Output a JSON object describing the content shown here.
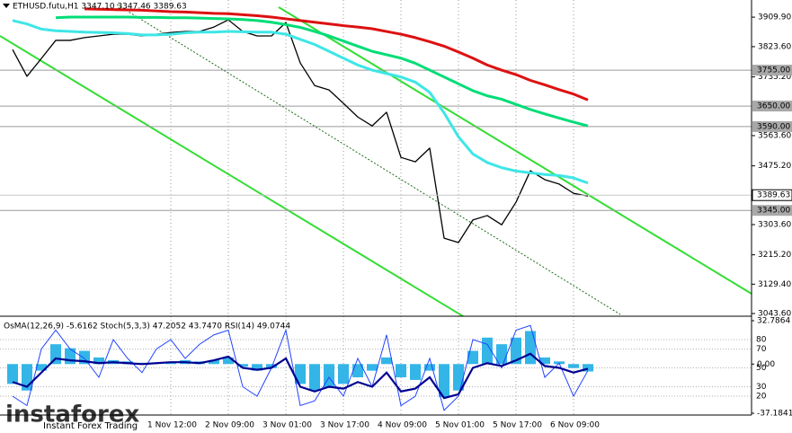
{
  "chart_data": [
    {
      "type": "line",
      "title": "ETHUSD.futu,H1 3347.10 3347.46 3389.63",
      "categories": [
        null,
        null,
        null,
        null,
        null,
        null,
        null,
        null,
        null,
        null,
        null,
        "1 Nov 12:00",
        null,
        null,
        null,
        "2 Nov 09:00",
        null,
        null,
        null,
        "3 Nov 01:00",
        null,
        null,
        null,
        "3 Nov 17:00",
        null,
        null,
        null,
        "4 Nov 09:00",
        null,
        null,
        null,
        "5 Nov 01:00",
        null,
        null,
        null,
        "5 Nov 17:00",
        null,
        null,
        null,
        "6 Nov 09:00",
        null
      ],
      "series": [
        {
          "name": "close",
          "color": "#000000",
          "width": 1.3,
          "values": [
            3815,
            3737,
            3789,
            3842,
            3842,
            3850,
            3855,
            3860,
            3860,
            3855,
            3860,
            3865,
            3868,
            3868,
            3881,
            3902,
            3868,
            3855,
            3855,
            3894,
            3776,
            3710,
            3697,
            3658,
            3618,
            3592,
            3632,
            3500,
            3487,
            3527,
            3264,
            3251,
            3317,
            3330,
            3303,
            3369,
            3461,
            3435,
            3422,
            3395,
            3387
          ]
        },
        {
          "name": "ma-fast",
          "color": "#3ee6e6",
          "width": 3,
          "values": [
            3900,
            3890,
            3875,
            3870,
            3868,
            3866,
            3865,
            3864,
            3862,
            3858,
            3858,
            3860,
            3864,
            3866,
            3866,
            3868,
            3867,
            3866,
            3866,
            3860,
            3845,
            3830,
            3810,
            3790,
            3770,
            3755,
            3745,
            3735,
            3720,
            3690,
            3630,
            3560,
            3510,
            3485,
            3470,
            3460,
            3455,
            3450,
            3447,
            3440,
            3425
          ]
        },
        {
          "name": "ma-mid",
          "color": "#00dd77",
          "width": 3,
          "values": [
            null,
            null,
            null,
            3908,
            3910,
            3910,
            3910,
            3910,
            3910,
            3909,
            3909,
            3908,
            3908,
            3907,
            3906,
            3905,
            3903,
            3900,
            3895,
            3888,
            3880,
            3868,
            3855,
            3840,
            3825,
            3810,
            3800,
            3790,
            3775,
            3755,
            3735,
            3715,
            3695,
            3680,
            3670,
            3655,
            3640,
            3627,
            3615,
            3603,
            3592
          ]
        },
        {
          "name": "ma-slow",
          "color": "#dd1111",
          "width": 3,
          "values": [
            null,
            null,
            null,
            null,
            null,
            3934,
            3933,
            3932,
            3931,
            3930,
            3928,
            3926,
            3925,
            3923,
            3921,
            3920,
            3917,
            3914,
            3910,
            3905,
            3900,
            3895,
            3890,
            3885,
            3881,
            3876,
            3868,
            3860,
            3850,
            3838,
            3825,
            3808,
            3790,
            3770,
            3755,
            3742,
            3725,
            3712,
            3698,
            3685,
            3668
          ]
        }
      ],
      "ylim": [
        3041,
        3960
      ],
      "yticks": [
        {
          "value": 3909.9,
          "label": "3909.90"
        },
        {
          "value": 3823.6,
          "label": "3823.60"
        },
        {
          "value": 3735.2,
          "label": "3735.20"
        },
        {
          "value": 3563.6,
          "label": "3563.60"
        },
        {
          "value": 3475.2,
          "label": "3475.20"
        },
        {
          "value": 3303.6,
          "label": "3303.60"
        },
        {
          "value": 3215.2,
          "label": "3215.20"
        },
        {
          "value": 3129.4,
          "label": "3129.40"
        },
        {
          "value": 3043.6,
          "label": "3043.60"
        }
      ],
      "levels": [
        {
          "value": 3755,
          "label": "3755.00"
        },
        {
          "value": 3650,
          "label": "3650.00"
        },
        {
          "value": 3590,
          "label": "3590.00"
        },
        {
          "value": 3345,
          "label": "3345.00"
        }
      ],
      "price": 3389.63,
      "grid": true
    },
    {
      "type": "oscillator",
      "title": "OsMA(12,26,9) -5.6162 Stoch(5,3,3) 47.2052 43.7470 RSI(14) 49.0744",
      "series": [
        {
          "name": "OsMA",
          "type": "bar",
          "axis": "y2",
          "color": "#33b5e8",
          "values": [
            -15,
            -20,
            -5,
            15,
            12,
            10,
            5,
            3,
            2,
            1,
            0,
            1,
            3,
            2,
            3,
            5,
            -2,
            -5,
            -3,
            0,
            -15,
            -20,
            -18,
            -15,
            -10,
            -5,
            5,
            -10,
            -12,
            -5,
            -25,
            -20,
            10,
            20,
            15,
            20,
            25,
            5,
            2,
            -3,
            -5.6162
          ]
        },
        {
          "name": "Stoch",
          "type": "line",
          "color": "#2244ff",
          "width": 1,
          "values": [
            20,
            10,
            70,
            90,
            70,
            60,
            40,
            80,
            60,
            45,
            70,
            80,
            60,
            75,
            85,
            90,
            30,
            20,
            50,
            90,
            10,
            15,
            40,
            20,
            60,
            30,
            85,
            10,
            20,
            60,
            5,
            20,
            80,
            75,
            50,
            90,
            95,
            40,
            55,
            20,
            47.2052
          ]
        },
        {
          "name": "RSI",
          "type": "line",
          "color": "#000090",
          "width": 2.2,
          "values": [
            35,
            30,
            45,
            60,
            58,
            57,
            55,
            56,
            55,
            54,
            55,
            56,
            56,
            55,
            58,
            62,
            50,
            48,
            50,
            60,
            30,
            25,
            30,
            28,
            35,
            30,
            45,
            25,
            28,
            40,
            18,
            22,
            50,
            55,
            52,
            58,
            65,
            52,
            50,
            45,
            49.0744
          ]
        }
      ],
      "ylim": [
        0,
        100
      ],
      "yticks": [
        80,
        70,
        50,
        30,
        20
      ],
      "y2lim": [
        -37.1841,
        32.7864
      ],
      "y2ticks": [
        32.7864,
        {
          "value": 0,
          "label": "0.00"
        },
        -37.1841
      ]
    }
  ],
  "watermark": {
    "name": "instaforex",
    "tagline": "Instant Forex Trading"
  }
}
